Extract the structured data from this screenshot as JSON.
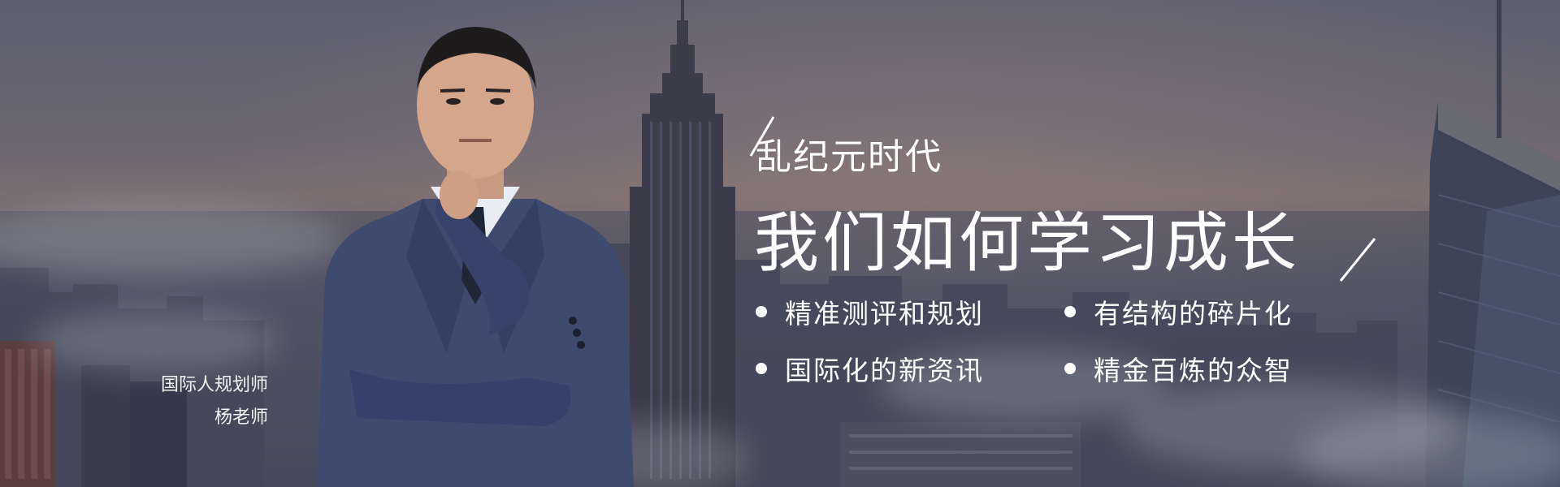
{
  "banner": {
    "headline_top": "乱纪元时代",
    "headline_main": "我们如何学习成长",
    "bullets": [
      {
        "label": "精准测评和规划"
      },
      {
        "label": "有结构的碎片化"
      },
      {
        "label": "国际化的新资讯"
      },
      {
        "label": "精金百炼的众智"
      }
    ],
    "caption": {
      "title": "国际人规划师",
      "name": "杨老师"
    }
  },
  "colors": {
    "sky_top": "#5e5f71",
    "sky_glow": "#7a6d70",
    "text": "#ffffff"
  },
  "icons": {
    "bullet": "dot-icon",
    "accent": "slash-icon"
  }
}
